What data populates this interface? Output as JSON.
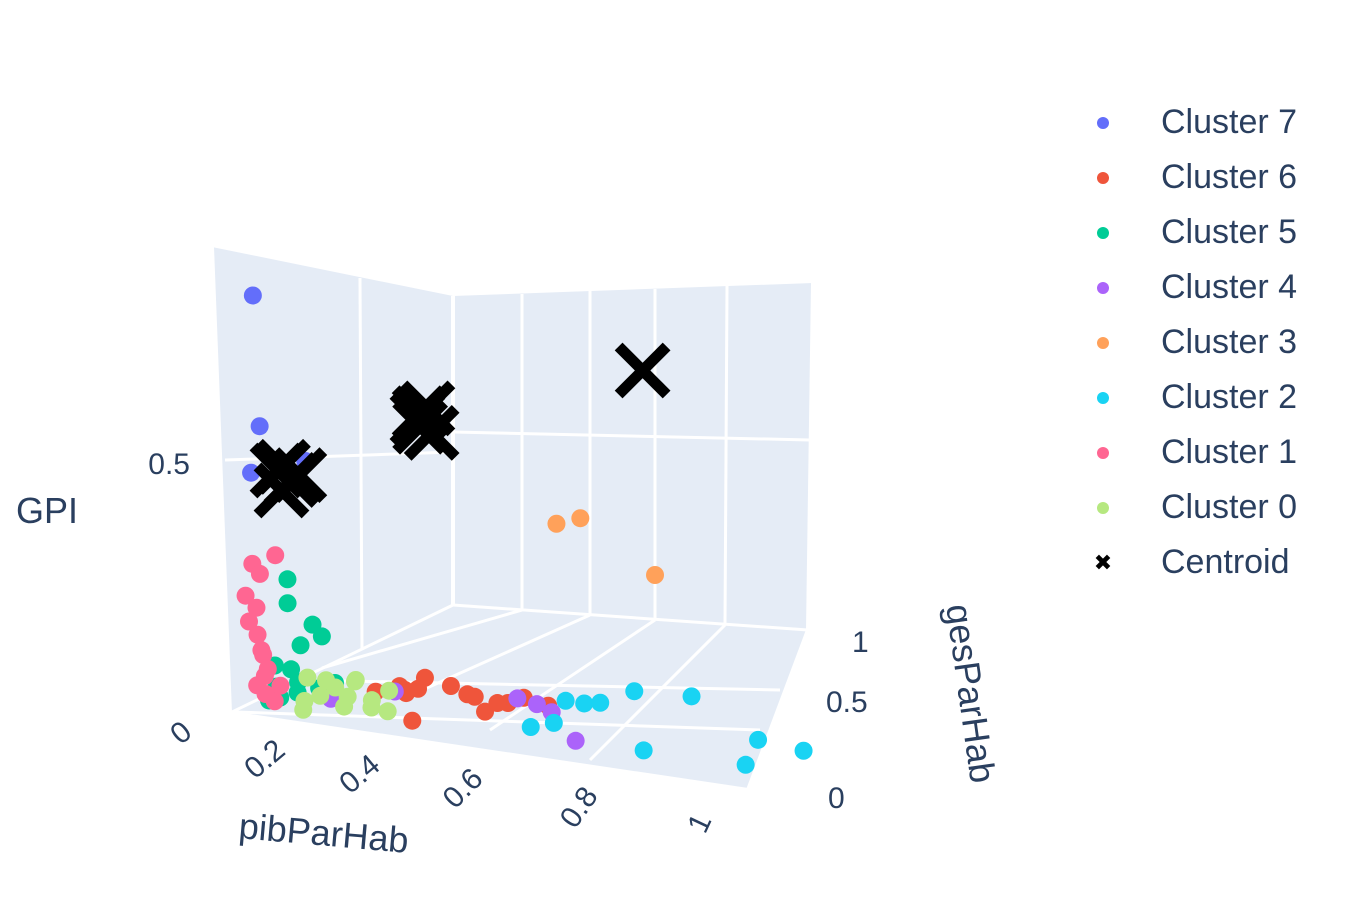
{
  "chart_data": {
    "type": "scatter3d",
    "axes": {
      "x": {
        "label": "pibParHab",
        "ticks": [
          "0.2",
          "0.4",
          "0.6",
          "0.8",
          "1"
        ]
      },
      "y": {
        "label": "gesParHab",
        "ticks": [
          "0",
          "0.5",
          "1"
        ]
      },
      "z": {
        "label": "GPI",
        "ticks": [
          "0",
          "0.5"
        ]
      }
    },
    "legend_position": "right",
    "series": [
      {
        "name": "Cluster 7",
        "color": "#636efa",
        "points": [
          [
            0.14,
            0.05,
            0.92
          ],
          [
            0.13,
            0.08,
            0.62
          ],
          [
            0.12,
            0.06,
            0.52
          ],
          [
            0.2,
            0.1,
            0.55
          ]
        ]
      },
      {
        "name": "Cluster 6",
        "color": "#ef553b",
        "points": [
          [
            0.3,
            0.12,
            0.05
          ],
          [
            0.33,
            0.15,
            0.06
          ],
          [
            0.36,
            0.1,
            0.07
          ],
          [
            0.38,
            0.14,
            0.09
          ],
          [
            0.35,
            0.18,
            0.05
          ],
          [
            0.4,
            0.2,
            0.06
          ],
          [
            0.42,
            0.22,
            0.04
          ],
          [
            0.45,
            0.18,
            0.05
          ],
          [
            0.5,
            0.2,
            0.04
          ],
          [
            0.48,
            0.15,
            0.03
          ],
          [
            0.52,
            0.22,
            0.05
          ],
          [
            0.38,
            0.08,
            0.01
          ],
          [
            0.55,
            0.25,
            0.03
          ],
          [
            0.46,
            0.25,
            0.02
          ],
          [
            0.32,
            0.2,
            0.03
          ]
        ]
      },
      {
        "name": "Cluster 5",
        "color": "#00cc96",
        "points": [
          [
            0.16,
            0.1,
            0.28
          ],
          [
            0.15,
            0.12,
            0.22
          ],
          [
            0.18,
            0.15,
            0.17
          ],
          [
            0.17,
            0.12,
            0.13
          ],
          [
            0.2,
            0.14,
            0.15
          ],
          [
            0.14,
            0.08,
            0.09
          ],
          [
            0.16,
            0.1,
            0.08
          ],
          [
            0.15,
            0.06,
            0.05
          ],
          [
            0.18,
            0.08,
            0.06
          ],
          [
            0.17,
            0.1,
            0.03
          ],
          [
            0.2,
            0.12,
            0.04
          ],
          [
            0.14,
            0.05,
            0.02
          ],
          [
            0.16,
            0.05,
            0.03
          ],
          [
            0.22,
            0.14,
            0.05
          ]
        ]
      },
      {
        "name": "Cluster 4",
        "color": "#ab63fa",
        "points": [
          [
            0.22,
            0.12,
            0.02
          ],
          [
            0.3,
            0.2,
            0.03
          ],
          [
            0.5,
            0.24,
            0.04
          ],
          [
            0.53,
            0.25,
            0.03
          ],
          [
            0.56,
            0.24,
            0.02
          ],
          [
            0.66,
            0.1,
            0.01
          ]
        ]
      },
      {
        "name": "Cluster 3",
        "color": "#ffa15a",
        "points": [
          [
            0.45,
            0.55,
            0.34
          ],
          [
            0.48,
            0.58,
            0.35
          ],
          [
            0.6,
            0.6,
            0.24
          ]
        ]
      },
      {
        "name": "Cluster 2",
        "color": "#19d3f3",
        "points": [
          [
            0.56,
            0.3,
            0.03
          ],
          [
            0.58,
            0.33,
            0.02
          ],
          [
            0.6,
            0.35,
            0.02
          ],
          [
            0.64,
            0.4,
            0.04
          ],
          [
            0.56,
            0.15,
            0.01
          ],
          [
            0.58,
            0.2,
            0.01
          ],
          [
            0.72,
            0.45,
            0.03
          ],
          [
            0.78,
            0.1,
            0.01
          ],
          [
            0.92,
            0.25,
            0.02
          ],
          [
            0.96,
            0.1,
            0.01
          ],
          [
            1.0,
            0.25,
            0.01
          ]
        ]
      },
      {
        "name": "Cluster 1",
        "color": "#ff6692",
        "points": [
          [
            0.12,
            0.05,
            0.32
          ],
          [
            0.14,
            0.1,
            0.33
          ],
          [
            0.12,
            0.08,
            0.29
          ],
          [
            0.11,
            0.04,
            0.25
          ],
          [
            0.12,
            0.06,
            0.22
          ],
          [
            0.11,
            0.05,
            0.19
          ],
          [
            0.12,
            0.06,
            0.16
          ],
          [
            0.13,
            0.05,
            0.13
          ],
          [
            0.12,
            0.08,
            0.11
          ],
          [
            0.14,
            0.05,
            0.09
          ],
          [
            0.13,
            0.06,
            0.07
          ],
          [
            0.12,
            0.05,
            0.05
          ],
          [
            0.14,
            0.1,
            0.04
          ],
          [
            0.15,
            0.05,
            0.02
          ],
          [
            0.13,
            0.06,
            0.03
          ]
        ]
      },
      {
        "name": "Cluster 0",
        "color": "#b6e880",
        "points": [
          [
            0.18,
            0.12,
            0.06
          ],
          [
            0.2,
            0.15,
            0.05
          ],
          [
            0.22,
            0.14,
            0.04
          ],
          [
            0.24,
            0.18,
            0.05
          ],
          [
            0.21,
            0.1,
            0.03
          ],
          [
            0.25,
            0.12,
            0.03
          ],
          [
            0.28,
            0.15,
            0.02
          ],
          [
            0.2,
            0.05,
            0.01
          ],
          [
            0.26,
            0.08,
            0.02
          ],
          [
            0.3,
            0.1,
            0.02
          ],
          [
            0.32,
            0.12,
            0.01
          ],
          [
            0.23,
            0.2,
            0.04
          ],
          [
            0.19,
            0.08,
            0.02
          ],
          [
            0.29,
            0.2,
            0.03
          ]
        ]
      },
      {
        "name": "Centroid",
        "color": "#000000",
        "marker": "x",
        "points": [
          [
            0.16,
            0.1,
            0.53
          ],
          [
            0.17,
            0.11,
            0.5
          ],
          [
            0.16,
            0.09,
            0.48
          ],
          [
            0.18,
            0.12,
            0.51
          ],
          [
            0.15,
            0.1,
            0.52
          ],
          [
            0.3,
            0.35,
            0.58
          ],
          [
            0.31,
            0.36,
            0.62
          ],
          [
            0.3,
            0.34,
            0.6
          ],
          [
            0.32,
            0.35,
            0.57
          ],
          [
            0.3,
            0.35,
            0.61
          ],
          [
            0.55,
            0.7,
            0.66
          ]
        ]
      }
    ]
  }
}
